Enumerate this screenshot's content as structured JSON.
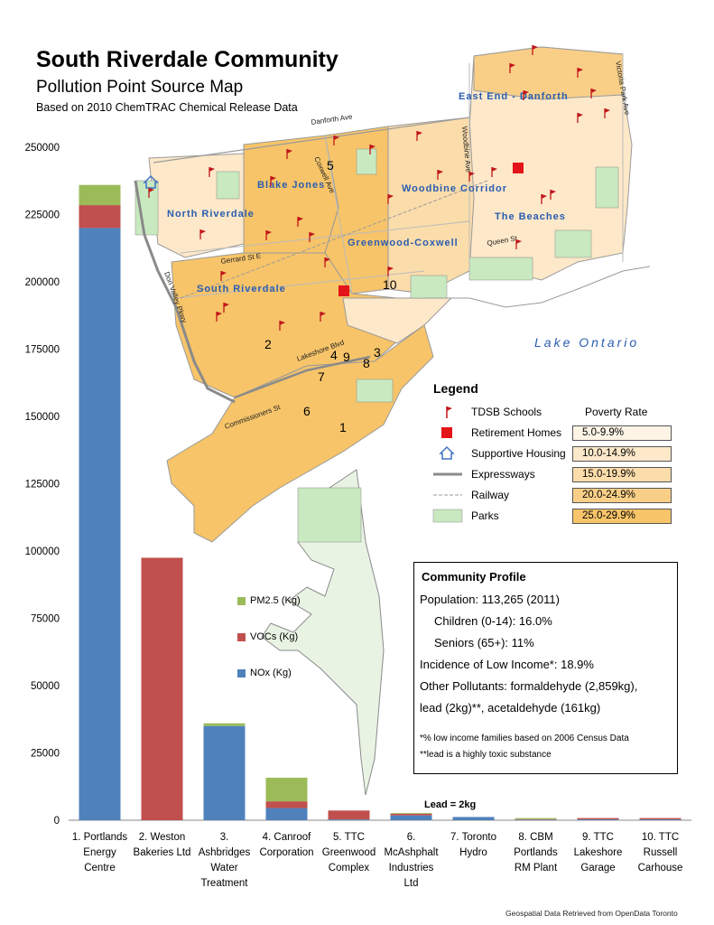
{
  "header": {
    "title": "South Riverdale Community",
    "subtitle": "Pollution Point Source Map",
    "subtitle2": "Based on 2010 ChemTRAC Chemical Release Data"
  },
  "map": {
    "neighbourhoods": [
      "North Riverdale",
      "Blake Jones",
      "Greenwood-Coxwell",
      "Woodbine Corridor",
      "East End - Danforth",
      "The Beaches",
      "South Riverdale"
    ],
    "streets": [
      "Danforth Ave",
      "Coxwell Ave",
      "Woodbine Ave",
      "Victoria Park Ave",
      "Gerrard St E",
      "Queen St",
      "Lakeshore Blvd",
      "Commissioners St",
      "Don Valley Pkwy"
    ],
    "water_label": "Lake Ontario",
    "site_numbers": [
      "1",
      "2",
      "3",
      "4",
      "5",
      "6",
      "7",
      "8",
      "9",
      "10"
    ],
    "colors": {
      "poverty_25": "#f7c469",
      "poverty_20": "#f9cf88",
      "poverty_15": "#fbdcab",
      "poverty_10": "#fde8c9",
      "poverty_5": "#fef4e6",
      "park": "#c9e9c0",
      "expressway": "#8a8a8a",
      "water": "#ffffff",
      "school": "#c0161a",
      "retirement": "#e3141a",
      "housing": "#3f73c2"
    }
  },
  "legend": {
    "title": "Legend",
    "items": [
      "TDSB Schools",
      "Retirement Homes",
      "Supportive Housing",
      "Expressways",
      "Railway",
      "Parks"
    ],
    "poverty_title": "Poverty Rate",
    "poverty_ranges": [
      "5.0-9.9%",
      "10.0-14.9%",
      "15.0-19.9%",
      "20.0-24.9%",
      "25.0-29.9%"
    ]
  },
  "profile": {
    "title": "Community Profile",
    "population": "Population: 113,265 (2011)",
    "children": "Children (0-14): 16.0%",
    "seniors": "Seniors (65+): 11%",
    "low_income": "Incidence of Low Income*: 18.9%",
    "other_pollutants_1": "Other Pollutants: formaldehyde (2,859kg),",
    "other_pollutants_2": "lead (2kg)**, acetaldehyde (161kg)",
    "note1": "*% low income families based on 2006 Census Data",
    "note2": "**lead is a highly toxic substance"
  },
  "credit": "Geospatial Data Retrieved from OpenData Toronto",
  "chart_data": {
    "type": "bar",
    "stacked": true,
    "categories": [
      [
        "1. Portlands",
        "Energy",
        "Centre"
      ],
      [
        "2. Weston",
        "Bakeries Ltd"
      ],
      [
        "3.",
        "Ashbridges",
        "Water",
        "Treatment"
      ],
      [
        "4. Canroof",
        "Corporation"
      ],
      [
        "5. TTC",
        "Greenwood",
        "Complex"
      ],
      [
        "6.",
        "McAshphalt",
        "Industries",
        "Ltd"
      ],
      [
        "7. Toronto",
        "Hydro"
      ],
      [
        "8. CBM",
        "Portlands",
        "RM Plant"
      ],
      [
        "9. TTC",
        "Lakeshore",
        "Garage"
      ],
      [
        "10. TTC",
        "Russell",
        "Carhouse"
      ]
    ],
    "series": [
      {
        "name": "NOx (Kg)",
        "color": "#4f81bd",
        "values": [
          220000,
          0,
          35000,
          4500,
          300,
          1800,
          1200,
          200,
          300,
          300
        ]
      },
      {
        "name": "VOCs (Kg)",
        "color": "#c0504d",
        "values": [
          8500,
          97500,
          0,
          2500,
          3300,
          600,
          0,
          200,
          500,
          500
        ]
      },
      {
        "name": "PM2.5 (Kg)",
        "color": "#9bbb59",
        "values": [
          7500,
          0,
          1000,
          8800,
          0,
          300,
          0,
          400,
          0,
          0
        ]
      }
    ],
    "yticks": [
      "0",
      "25000",
      "50000",
      "75000",
      "100000",
      "125000",
      "150000",
      "175000",
      "200000",
      "225000",
      "250000"
    ],
    "ylim": [
      0,
      250000
    ],
    "annotation": "Lead = 2kg"
  }
}
